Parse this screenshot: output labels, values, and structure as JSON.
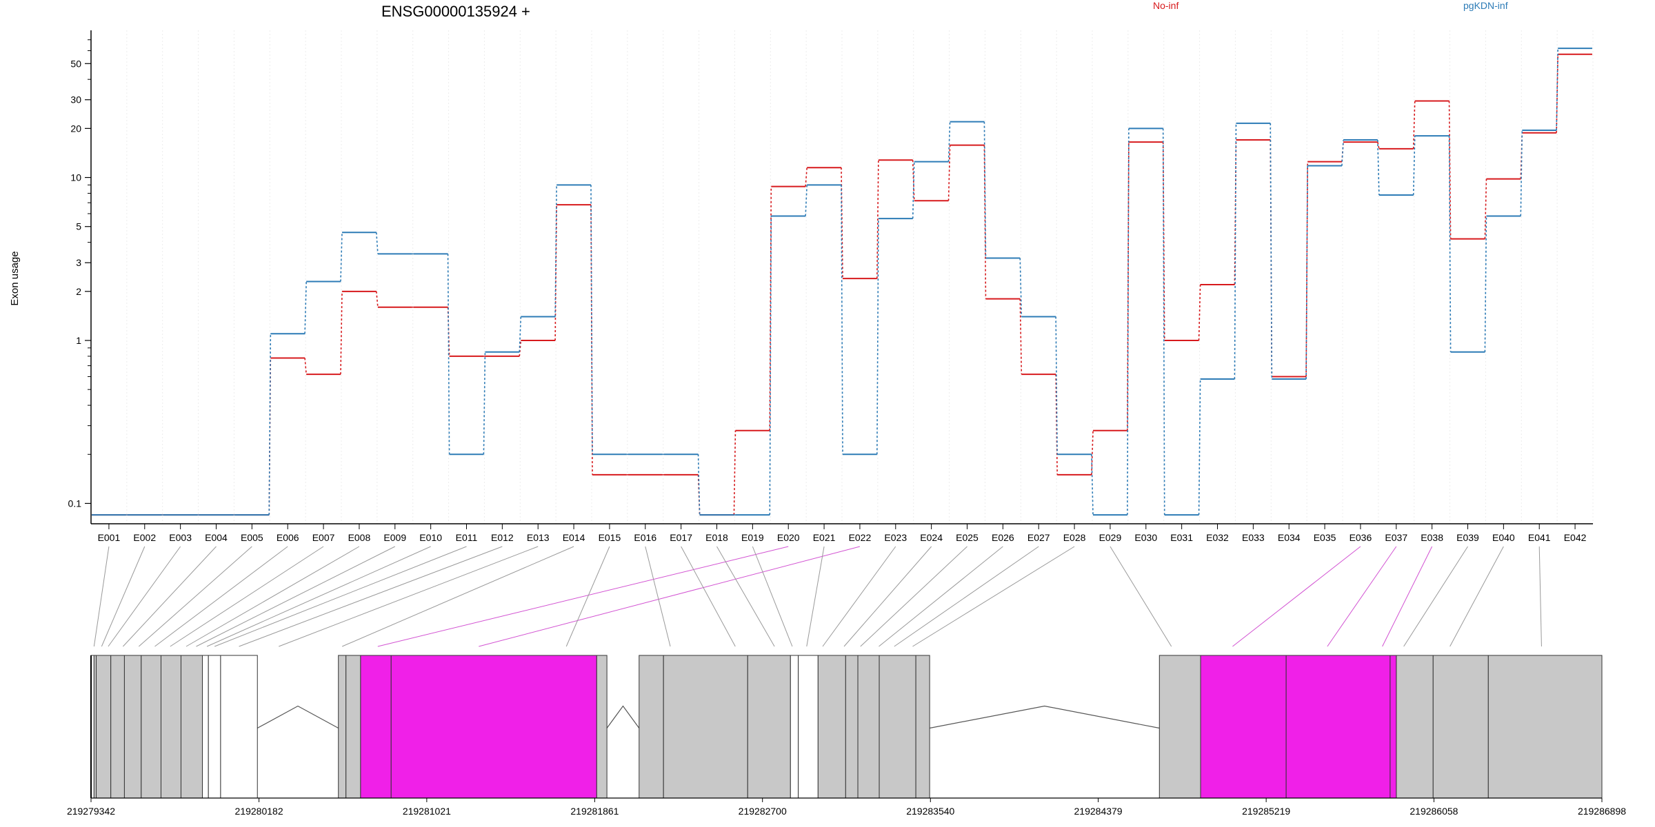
{
  "chart_data": {
    "type": "line",
    "title": "ENSG00000135924 +",
    "ylabel": "Exon usage",
    "yscale": "log",
    "ylim": [
      0.075,
      80
    ],
    "yticks": [
      "0.1",
      "1",
      "2",
      "3",
      "5",
      "10",
      "20",
      "30",
      "50"
    ],
    "categories": [
      "E001",
      "E002",
      "E003",
      "E004",
      "E005",
      "E006",
      "E007",
      "E008",
      "E009",
      "E010",
      "E011",
      "E012",
      "E013",
      "E014",
      "E015",
      "E016",
      "E017",
      "E018",
      "E019",
      "E020",
      "E021",
      "E022",
      "E023",
      "E024",
      "E025",
      "E026",
      "E027",
      "E028",
      "E029",
      "E030",
      "E031",
      "E032",
      "E033",
      "E034",
      "E035",
      "E036",
      "E037",
      "E038",
      "E039",
      "E040",
      "E041",
      "E042"
    ],
    "series": [
      {
        "name": "No-inf",
        "color": "#d7191c",
        "values": [
          0.085,
          0.085,
          0.085,
          0.085,
          0.085,
          0.78,
          0.62,
          2.0,
          1.6,
          1.6,
          0.8,
          0.8,
          1.0,
          6.8,
          0.15,
          0.15,
          0.15,
          0.085,
          0.28,
          8.8,
          11.5,
          2.4,
          12.8,
          7.2,
          15.8,
          1.8,
          0.62,
          0.15,
          0.28,
          16.5,
          1.0,
          2.2,
          17.0,
          0.6,
          12.5,
          16.5,
          15.0,
          29.5,
          4.2,
          9.8,
          18.8,
          57
        ]
      },
      {
        "name": "pgKDN-inf",
        "color": "#2c7bb6",
        "values": [
          0.085,
          0.085,
          0.085,
          0.085,
          0.085,
          1.1,
          2.3,
          4.6,
          3.4,
          3.4,
          0.2,
          0.85,
          1.4,
          9.0,
          0.2,
          0.2,
          0.2,
          0.085,
          0.085,
          5.8,
          9.0,
          0.2,
          5.6,
          12.5,
          22.0,
          3.2,
          1.4,
          0.2,
          0.085,
          20.0,
          0.085,
          0.58,
          21.5,
          0.58,
          11.8,
          17.0,
          7.8,
          18.0,
          0.85,
          5.8,
          19.5,
          62
        ]
      }
    ],
    "genome": {
      "ticks": [
        "219279342",
        "219280182",
        "219281021",
        "219281861",
        "219282700",
        "219283540",
        "219284379",
        "219285219",
        "219286058",
        "219286898"
      ],
      "start": 219279342,
      "end": 219286898,
      "exon_blocks": [
        {
          "s": 219279342,
          "e": 219279357,
          "fill": "#ffffff"
        },
        {
          "s": 219279357,
          "e": 219279368,
          "fill": "#c8c8c8"
        },
        {
          "s": 219279368,
          "e": 219279441,
          "fill": "#c8c8c8"
        },
        {
          "s": 219279441,
          "e": 219279509,
          "fill": "#c8c8c8"
        },
        {
          "s": 219279509,
          "e": 219279593,
          "fill": "#c8c8c8"
        },
        {
          "s": 219279593,
          "e": 219279692,
          "fill": "#c8c8c8"
        },
        {
          "s": 219279692,
          "e": 219279792,
          "fill": "#c8c8c8"
        },
        {
          "s": 219279792,
          "e": 219279899,
          "fill": "#c8c8c8"
        },
        {
          "s": 219279899,
          "e": 219279929,
          "fill": "#ffffff"
        },
        {
          "s": 219279929,
          "e": 219279990,
          "fill": "#ffffff"
        },
        {
          "s": 219279990,
          "e": 219280174,
          "fill": "#ffffff"
        },
        {
          "s": 219280579,
          "e": 219280617,
          "fill": "#c8c8c8"
        },
        {
          "s": 219280617,
          "e": 219280690,
          "fill": "#c8c8c8"
        },
        {
          "s": 219280690,
          "e": 219280843,
          "fill": "#f020e8"
        },
        {
          "s": 219280843,
          "e": 219281871,
          "fill": "#f020e8"
        },
        {
          "s": 219281871,
          "e": 219281922,
          "fill": "#c8c8c8"
        },
        {
          "s": 219282083,
          "e": 219282205,
          "fill": "#c8c8c8"
        },
        {
          "s": 219282205,
          "e": 219282626,
          "fill": "#c8c8c8"
        },
        {
          "s": 219282626,
          "e": 219282840,
          "fill": "#c8c8c8"
        },
        {
          "s": 219282840,
          "e": 219282879,
          "fill": "#ffffff"
        },
        {
          "s": 219282879,
          "e": 219282978,
          "fill": "#ffffff"
        },
        {
          "s": 219282978,
          "e": 219283116,
          "fill": "#c8c8c8"
        },
        {
          "s": 219283116,
          "e": 219283177,
          "fill": "#c8c8c8"
        },
        {
          "s": 219283177,
          "e": 219283284,
          "fill": "#c8c8c8"
        },
        {
          "s": 219283284,
          "e": 219283467,
          "fill": "#c8c8c8"
        },
        {
          "s": 219283467,
          "e": 219283536,
          "fill": "#c8c8c8"
        },
        {
          "s": 219284685,
          "e": 219284891,
          "fill": "#c8c8c8"
        },
        {
          "s": 219284891,
          "e": 219285319,
          "fill": "#f020e8"
        },
        {
          "s": 219285319,
          "e": 219285839,
          "fill": "#f020e8"
        },
        {
          "s": 219285839,
          "e": 219285870,
          "fill": "#f020e8"
        },
        {
          "s": 219285870,
          "e": 219286054,
          "fill": "#c8c8c8"
        },
        {
          "s": 219286054,
          "e": 219286330,
          "fill": "#c8c8c8"
        },
        {
          "s": 219286330,
          "e": 219286898,
          "fill": "#c8c8c8"
        }
      ],
      "introns": [
        {
          "s": 219280174,
          "e": 219280579
        },
        {
          "s": 219281922,
          "e": 219282083
        },
        {
          "s": 219283536,
          "e": 219284685
        }
      ],
      "connector_targets": [
        219279357,
        219279395,
        219279428,
        219279502,
        219279581,
        219279661,
        219279738,
        219279818,
        219279868,
        219279922,
        219279960,
        219280082,
        219280281,
        219280598,
        219280776,
        219281281,
        219281719,
        219282239,
        219282564,
        219282760,
        219282849,
        219282921,
        219283001,
        219283108,
        219283190,
        219283282,
        219283359,
        219283451,
        219284745,
        219285051,
        219285525,
        219285800,
        219285907,
        219286138,
        219286596
      ],
      "connector_colors": [
        "#999999",
        "#999999",
        "#999999",
        "#999999",
        "#999999",
        "#999999",
        "#999999",
        "#999999",
        "#999999",
        "#999999",
        "#999999",
        "#999999",
        "#999999",
        "#999999",
        "#d252d2",
        "#d252d2",
        "#999999",
        "#999999",
        "#999999",
        "#999999",
        "#999999",
        "#999999",
        "#999999",
        "#999999",
        "#999999",
        "#999999",
        "#999999",
        "#999999",
        "#999999",
        "#d252d2",
        "#d252d2",
        "#d252d2",
        "#999999",
        "#999999",
        "#999999"
      ],
      "connector_sources": [
        1,
        2,
        3,
        4,
        5,
        6,
        7,
        8,
        9,
        10,
        11,
        12,
        13,
        14,
        20,
        22,
        15,
        16,
        17,
        18,
        19,
        21,
        23,
        24,
        25,
        26,
        27,
        28,
        29,
        36,
        37,
        38,
        39,
        40,
        41
      ]
    }
  }
}
